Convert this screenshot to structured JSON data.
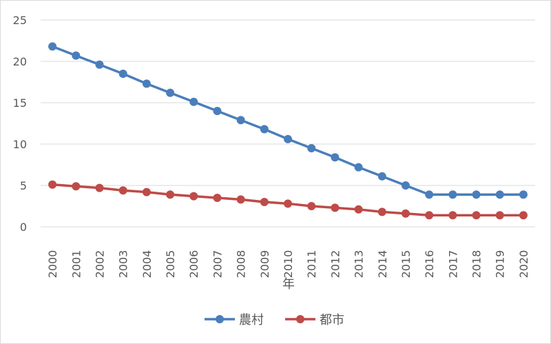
{
  "chart_data": {
    "type": "line",
    "title": "",
    "xlabel": "年",
    "ylabel": "",
    "ylim": [
      0,
      25
    ],
    "yticks": [
      0,
      5,
      10,
      15,
      20,
      25
    ],
    "grid": "horizontal",
    "legend_position": "bottom",
    "categories": [
      "2000",
      "2001",
      "2002",
      "2003",
      "2004",
      "2005",
      "2006",
      "2007",
      "2008",
      "2009",
      "2010",
      "2011",
      "2012",
      "2013",
      "2014",
      "2015",
      "2016",
      "2017",
      "2018",
      "2019",
      "2020"
    ],
    "series": [
      {
        "name": "農村",
        "color": "#4a7ebb",
        "values": [
          21.8,
          20.7,
          19.6,
          18.5,
          17.3,
          16.2,
          15.1,
          14.0,
          12.9,
          11.8,
          10.6,
          9.5,
          8.4,
          7.2,
          6.1,
          5.0,
          3.9,
          3.9,
          3.9,
          3.9,
          3.9
        ]
      },
      {
        "name": "都市",
        "color": "#be4b48",
        "values": [
          5.1,
          4.9,
          4.7,
          4.4,
          4.2,
          3.9,
          3.7,
          3.5,
          3.3,
          3.0,
          2.8,
          2.5,
          2.3,
          2.1,
          1.8,
          1.6,
          1.4,
          1.4,
          1.4,
          1.4,
          1.4
        ]
      }
    ]
  }
}
